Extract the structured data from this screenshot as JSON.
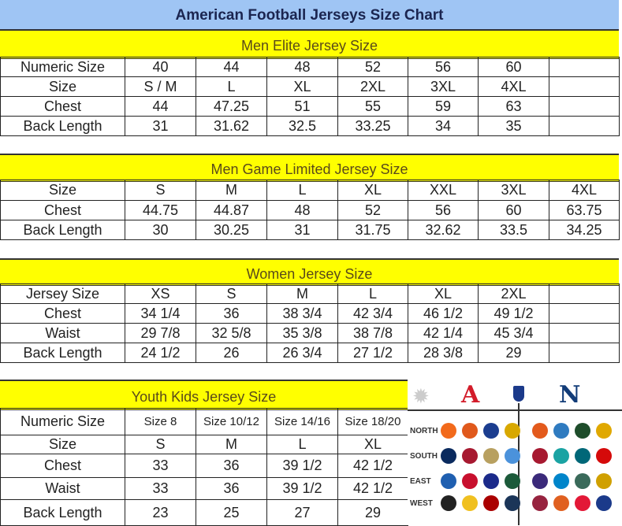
{
  "title": "American Football Jerseys Size Chart",
  "sections": [
    {
      "heading": "Men Elite Jersey Size",
      "rows": [
        [
          "Numeric Size",
          "40",
          "44",
          "48",
          "52",
          "56",
          "60",
          ""
        ],
        [
          "Size",
          "S / M",
          "L",
          "XL",
          "2XL",
          "3XL",
          "4XL",
          ""
        ],
        [
          "Chest",
          "44",
          "47.25",
          "51",
          "55",
          "59",
          "63",
          ""
        ],
        [
          "Back Length",
          "31",
          "31.62",
          "32.5",
          "33.25",
          "34",
          "35",
          ""
        ]
      ]
    },
    {
      "heading": "Men Game Limited Jersey Size",
      "rows": [
        [
          "Size",
          "S",
          "M",
          "L",
          "XL",
          "XXL",
          "3XL",
          "4XL"
        ],
        [
          "Chest",
          "44.75",
          "44.87",
          "48",
          "52",
          "56",
          "60",
          "63.75"
        ],
        [
          "Back Length",
          "30",
          "30.25",
          "31",
          "31.75",
          "32.62",
          "33.5",
          "34.25"
        ]
      ]
    },
    {
      "heading": "Women Jersey Size",
      "rows": [
        [
          "Jersey Size",
          "XS",
          "S",
          "M",
          "L",
          "XL",
          "2XL",
          ""
        ],
        [
          "Chest",
          "34 1/4",
          "36",
          "38 3/4",
          "42 3/4",
          "46 1/2",
          "49 1/2",
          ""
        ],
        [
          "Waist",
          "29 7/8",
          "32 5/8",
          "35 3/8",
          "38 7/8",
          "42 1/4",
          "45 3/4",
          ""
        ],
        [
          "Back Length",
          "24 1/2",
          "26",
          "26 3/4",
          "27 1/2",
          "28 3/8",
          "29",
          ""
        ]
      ]
    },
    {
      "heading": "Youth Kids Jersey Size",
      "rows": [
        [
          "Numeric Size",
          "Size 8",
          "Size 10/12",
          "Size 14/16",
          "Size 18/20"
        ],
        [
          "Size",
          "S",
          "M",
          "L",
          "XL"
        ],
        [
          "Chest",
          "33",
          "36",
          "39 1/2",
          "42 1/2"
        ],
        [
          "Waist",
          "33",
          "36",
          "39 1/2",
          "42 1/2"
        ],
        [
          "Back Length",
          "23",
          "25",
          "27",
          "29"
        ]
      ]
    }
  ],
  "logos": {
    "divisions": [
      "NORTH",
      "SOUTH",
      "EAST",
      "WEST"
    ],
    "afc_colors": [
      [
        "#f26a1b",
        "#e0591c",
        "#1b3d8f",
        "#d8a800"
      ],
      [
        "#0a2a5e",
        "#a71930",
        "#b8a060",
        "#4b92db"
      ],
      [
        "#1f5fb0",
        "#c8102e",
        "#1b2a8a",
        "#1c5a3a"
      ],
      [
        "#222222",
        "#f0c020",
        "#aa0000",
        "#1b3558"
      ]
    ],
    "nfc_colors": [
      [
        "#e35a1c",
        "#2f7bc0",
        "#1e4d2b",
        "#e0a800"
      ],
      [
        "#a71930",
        "#1aa3a3",
        "#006778",
        "#d50a0a"
      ],
      [
        "#3b2a7a",
        "#0085ca",
        "#3a6a5a",
        "#d0a000"
      ],
      [
        "#97233f",
        "#e06020",
        "#e31837",
        "#1b3a8a"
      ]
    ],
    "afc_accent": "#d31c2a",
    "nfc_accent": "#123c78"
  }
}
